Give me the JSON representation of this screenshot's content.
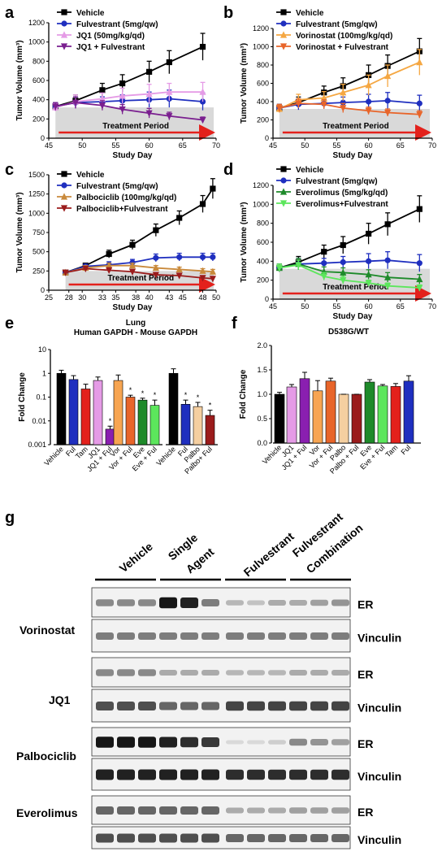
{
  "panel_labels": [
    "a",
    "b",
    "c",
    "d",
    "e",
    "f",
    "g"
  ],
  "shade_label": "Treatment Period",
  "chart_data": [
    {
      "id": "a",
      "type": "line",
      "xlabel": "Study Day",
      "ylabel": "Tumor Volume (mm³)",
      "xlim": [
        45,
        70
      ],
      "ylim": [
        0,
        1200
      ],
      "xticks": [
        "45",
        "50",
        "55",
        "60",
        "65",
        "70"
      ],
      "yticks": [
        "0",
        "200",
        "400",
        "600",
        "800",
        "1000",
        "1200"
      ],
      "x": [
        46,
        49,
        53,
        56,
        60,
        63,
        68
      ],
      "series": [
        {
          "name": "Vehicle",
          "color": "#000000",
          "marker": "square",
          "values": [
            330,
            390,
            500,
            570,
            690,
            790,
            950
          ],
          "err": [
            40,
            60,
            70,
            90,
            110,
            120,
            140
          ]
        },
        {
          "name": "Fulvestrant (5mg/qw)",
          "color": "#1f2fbf",
          "marker": "circle",
          "values": [
            330,
            370,
            380,
            390,
            400,
            410,
            380
          ],
          "err": [
            40,
            60,
            50,
            60,
            80,
            90,
            90
          ]
        },
        {
          "name": "JQ1 (50mg/kg/qd)",
          "color": "#e59be6",
          "marker": "triangle",
          "values": [
            320,
            380,
            410,
            440,
            460,
            480,
            480
          ],
          "err": [
            40,
            70,
            60,
            80,
            100,
            90,
            100
          ]
        },
        {
          "name": "JQ1 + Fulvestrant",
          "color": "#7a1f8f",
          "marker": "triangle-down",
          "values": [
            330,
            370,
            340,
            300,
            260,
            230,
            190
          ],
          "err": [
            40,
            60,
            50,
            50,
            50,
            40,
            30
          ]
        }
      ]
    },
    {
      "id": "b",
      "type": "line",
      "xlabel": "Study Day",
      "ylabel": "Tumor Volume (mm³)",
      "xlim": [
        45,
        70
      ],
      "ylim": [
        0,
        1200
      ],
      "xticks": [
        "45",
        "50",
        "55",
        "60",
        "65",
        "70"
      ],
      "yticks": [
        "0",
        "200",
        "400",
        "600",
        "800",
        "1000",
        "1200"
      ],
      "x": [
        46,
        49,
        53,
        56,
        60,
        63,
        68
      ],
      "series": [
        {
          "name": "Vehicle",
          "color": "#000000",
          "marker": "square",
          "values": [
            330,
            390,
            500,
            570,
            690,
            790,
            950
          ],
          "err": [
            40,
            60,
            70,
            90,
            110,
            120,
            140
          ]
        },
        {
          "name": "Fulvestrant (5mg/qw)",
          "color": "#1f2fbf",
          "marker": "circle",
          "values": [
            330,
            370,
            380,
            390,
            400,
            410,
            380
          ],
          "err": [
            40,
            60,
            50,
            60,
            80,
            90,
            90
          ]
        },
        {
          "name": "Vorinostat (100mg/kg/qd)",
          "color": "#f5a742",
          "marker": "triangle",
          "values": [
            320,
            420,
            440,
            500,
            580,
            680,
            830
          ],
          "err": [
            40,
            60,
            70,
            90,
            110,
            120,
            140
          ]
        },
        {
          "name": "Vorinostat + Fulvestrant",
          "color": "#e8652a",
          "marker": "triangle-down",
          "values": [
            330,
            380,
            370,
            330,
            300,
            280,
            260
          ],
          "err": [
            40,
            50,
            50,
            50,
            40,
            40,
            40
          ]
        }
      ]
    },
    {
      "id": "c",
      "type": "line",
      "xlabel": "Study Day",
      "ylabel": "Tumor Volume (mm³)",
      "xlim": [
        25,
        50
      ],
      "ylim": [
        0,
        1500
      ],
      "xticks": [
        "25",
        "28",
        "30",
        "33",
        "35",
        "38",
        "40",
        "43",
        "45",
        "48",
        "50"
      ],
      "yticks": [
        "0",
        "250",
        "500",
        "750",
        "1000",
        "1250",
        "1500"
      ],
      "x": [
        27.5,
        30.5,
        34,
        37.5,
        41,
        44.5,
        48,
        49.5
      ],
      "series": [
        {
          "name": "Vehicle",
          "color": "#000000",
          "marker": "square",
          "values": [
            230,
            320,
            470,
            590,
            780,
            940,
            1120,
            1320
          ],
          "err": [
            20,
            30,
            50,
            60,
            80,
            90,
            110,
            130
          ]
        },
        {
          "name": "Fulvestrant (5mg/qw)",
          "color": "#1f2fbf",
          "marker": "circle",
          "values": [
            230,
            310,
            330,
            360,
            420,
            430,
            430,
            430
          ],
          "err": [
            20,
            30,
            40,
            40,
            50,
            50,
            50,
            50
          ]
        },
        {
          "name": "Palbociclib (100mg/kg/qd)",
          "color": "#c98a3c",
          "marker": "triangle",
          "values": [
            230,
            290,
            320,
            320,
            290,
            270,
            250,
            240
          ],
          "err": [
            20,
            30,
            30,
            30,
            30,
            30,
            30,
            30
          ]
        },
        {
          "name": "Palbociclib+Fulvestrant",
          "color": "#9b1c1c",
          "marker": "triangle-down",
          "values": [
            230,
            280,
            260,
            240,
            200,
            190,
            160,
            150
          ],
          "err": [
            20,
            30,
            30,
            30,
            20,
            20,
            20,
            20
          ]
        }
      ]
    },
    {
      "id": "d",
      "type": "line",
      "xlabel": "Study Day",
      "ylabel": "Tumor Volume (mm³)",
      "xlim": [
        45,
        70
      ],
      "ylim": [
        0,
        1200
      ],
      "xticks": [
        "45",
        "50",
        "55",
        "60",
        "65",
        "70"
      ],
      "yticks": [
        "0",
        "200",
        "400",
        "600",
        "800",
        "1000",
        "1200"
      ],
      "x": [
        46,
        49,
        53,
        56,
        60,
        63,
        68
      ],
      "series": [
        {
          "name": "Vehicle",
          "color": "#000000",
          "marker": "square",
          "values": [
            330,
            390,
            500,
            570,
            690,
            790,
            950
          ],
          "err": [
            40,
            60,
            70,
            90,
            110,
            120,
            140
          ]
        },
        {
          "name": "Fulvestrant (5mg/qw)",
          "color": "#1f2fbf",
          "marker": "circle",
          "values": [
            330,
            370,
            380,
            390,
            400,
            410,
            380
          ],
          "err": [
            40,
            60,
            50,
            60,
            80,
            90,
            90
          ]
        },
        {
          "name": "Everolimus (5mg/kg/qd)",
          "color": "#1e8a2a",
          "marker": "triangle",
          "values": [
            330,
            370,
            290,
            280,
            260,
            230,
            210
          ],
          "err": [
            40,
            60,
            50,
            50,
            50,
            50,
            50
          ]
        },
        {
          "name": "Everolimus+Fulvestrant",
          "color": "#5ce65c",
          "marker": "triangle-down",
          "values": [
            330,
            360,
            240,
            200,
            170,
            140,
            120
          ],
          "err": [
            40,
            50,
            40,
            40,
            30,
            30,
            30
          ]
        }
      ]
    },
    {
      "id": "e",
      "type": "bar",
      "title": "Lung",
      "subtitle": "Human GAPDH - Mouse GAPDH",
      "ylabel": "Fold Change",
      "yscale": "log",
      "ylim": [
        0.001,
        10
      ],
      "yticks": [
        "10",
        "1",
        "0.1",
        "0.01",
        "0.001"
      ],
      "categories": [
        "Vehicle",
        "Ful",
        "Tam",
        "JQ1",
        "JQ1 + Ful",
        "Vor",
        "Vor + Ful",
        "Eve",
        "Eve + Ful",
        "Vehicle",
        "Ful",
        "Palbo",
        "Palbo+ Ful"
      ],
      "values": [
        1.0,
        0.55,
        0.22,
        0.5,
        0.0045,
        0.5,
        0.1,
        0.075,
        0.045,
        1.0,
        0.05,
        0.04,
        0.017
      ],
      "err_upper": [
        1.35,
        0.8,
        0.35,
        0.7,
        0.006,
        0.85,
        0.12,
        0.09,
        0.075,
        1.55,
        0.075,
        0.06,
        0.028
      ],
      "colors": [
        "#000000",
        "#1f2fbf",
        "#e3211c",
        "#e59be6",
        "#8a1fb0",
        "#f7a552",
        "#e8652a",
        "#1e8a2a",
        "#5ce65c",
        "#000000",
        "#1f2fbf",
        "#f5cfa0",
        "#9b1c1c"
      ],
      "significant": [
        false,
        false,
        false,
        false,
        true,
        false,
        true,
        true,
        true,
        false,
        true,
        true,
        true
      ],
      "star": "*"
    },
    {
      "id": "f",
      "type": "bar",
      "title": "D538G/WT",
      "ylabel": "Fold Change",
      "ylim": [
        0.0,
        2.0
      ],
      "yticks": [
        "0.0",
        "0.5",
        "1.0",
        "1.5",
        "2.0"
      ],
      "categories": [
        "Vehicle",
        "JQ1",
        "JQ1 + Ful",
        "Vor",
        "Vor + Ful",
        "Palbo",
        "Palbo + Ful",
        "Eve",
        "Eve + Ful",
        "Tam",
        "Ful"
      ],
      "values": [
        1.0,
        1.15,
        1.32,
        1.07,
        1.27,
        1.0,
        1.0,
        1.25,
        1.17,
        1.16,
        1.27
      ],
      "err_upper": [
        1.04,
        1.2,
        1.45,
        1.28,
        1.33,
        1.0,
        1.0,
        1.3,
        1.2,
        1.22,
        1.38
      ],
      "colors": [
        "#000000",
        "#e59be6",
        "#8a1fb0",
        "#f7a552",
        "#e8652a",
        "#f5cfa0",
        "#9b1c1c",
        "#1e8a2a",
        "#5ce65c",
        "#e3211c",
        "#1f2fbf"
      ]
    }
  ],
  "blot": {
    "groups": [
      "Vehicle",
      "Single",
      "Agent",
      "Fulvestrant",
      "Fulvestrant",
      "Combination"
    ],
    "drugs": [
      "Vorinostat",
      "JQ1",
      "Palbociclib",
      "Everolimus"
    ],
    "proteins": [
      "ER",
      "Vinculin"
    ],
    "band_intensity": [
      {
        "drug": "Vorinostat",
        "ER": [
          0.45,
          0.45,
          0.45,
          0.95,
          0.9,
          0.5,
          0.25,
          0.2,
          0.3,
          0.3,
          0.35,
          0.4
        ],
        "Vinculin": [
          0.5,
          0.5,
          0.5,
          0.5,
          0.5,
          0.5,
          0.5,
          0.5,
          0.5,
          0.5,
          0.5,
          0.5
        ]
      },
      {
        "drug": "JQ1",
        "ER": [
          0.45,
          0.45,
          0.45,
          0.3,
          0.3,
          0.3,
          0.25,
          0.25,
          0.25,
          0.3,
          0.3,
          0.3
        ],
        "Vinculin": [
          0.7,
          0.7,
          0.7,
          0.6,
          0.6,
          0.6,
          0.75,
          0.75,
          0.75,
          0.75,
          0.75,
          0.75
        ]
      },
      {
        "drug": "Palbociclib",
        "ER": [
          0.95,
          0.95,
          0.95,
          0.9,
          0.85,
          0.8,
          0.1,
          0.1,
          0.15,
          0.45,
          0.4,
          0.35
        ],
        "Vinculin": [
          0.9,
          0.9,
          0.9,
          0.9,
          0.9,
          0.9,
          0.85,
          0.85,
          0.85,
          0.85,
          0.85,
          0.85
        ]
      },
      {
        "drug": "Everolimus",
        "ER": [
          0.6,
          0.6,
          0.6,
          0.6,
          0.6,
          0.6,
          0.3,
          0.3,
          0.3,
          0.35,
          0.35,
          0.35
        ],
        "Vinculin": [
          0.7,
          0.7,
          0.7,
          0.7,
          0.7,
          0.7,
          0.6,
          0.6,
          0.6,
          0.6,
          0.6,
          0.6
        ]
      }
    ]
  }
}
